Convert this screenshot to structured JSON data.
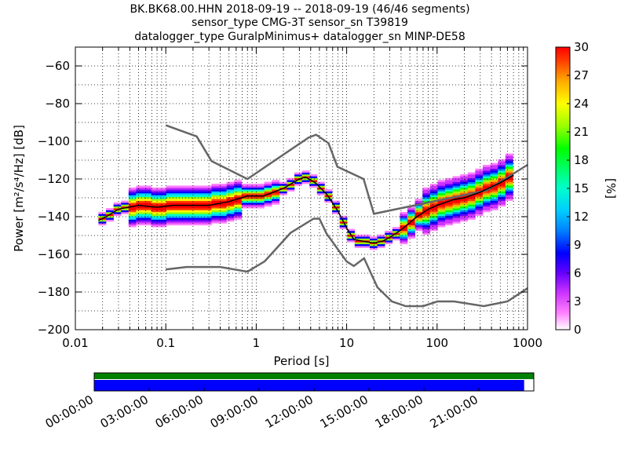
{
  "chart_data": {
    "type": "heatmap",
    "title_lines": [
      "BK.BK68.00.HHN   2018-09-19 -- 2018-09-19  (46/46 segments)",
      "sensor_type CMG-3T sensor_sn T39819",
      "datalogger_type GuralpMinimus+ datalogger_sn MINP-DE58"
    ],
    "xlabel": "Period [s]",
    "ylabel": "Power [m²/s⁴/Hz] [dB]",
    "x_scale": "log",
    "xlim": [
      0.01,
      1000
    ],
    "ylim": [
      -200,
      -50
    ],
    "x_ticks": [
      0.01,
      0.1,
      1,
      10,
      100,
      1000
    ],
    "x_tick_labels": [
      "0.01",
      "0.1",
      "1",
      "10",
      "100",
      "1000"
    ],
    "y_ticks": [
      -200,
      -180,
      -160,
      -140,
      -120,
      -100,
      -80,
      -60
    ],
    "y_tick_labels": [
      "−200",
      "−180",
      "−160",
      "−140",
      "−120",
      "−100",
      "−80",
      "−60"
    ],
    "grid": true,
    "colorbar": {
      "label": "[%]",
      "range": [
        0,
        30
      ],
      "ticks": [
        0,
        3,
        6,
        9,
        12,
        15,
        18,
        21,
        24,
        27,
        30
      ],
      "tick_labels": [
        "0",
        "3",
        "6",
        "9",
        "12",
        "15",
        "18",
        "21",
        "24",
        "27",
        "30"
      ]
    },
    "mode_curve": {
      "period": [
        0.018,
        0.022,
        0.03,
        0.05,
        0.08,
        0.12,
        0.2,
        0.3,
        0.5,
        0.8,
        1.2,
        2,
        3,
        3.5,
        4.5,
        6,
        8,
        10,
        12,
        15,
        20,
        25,
        30,
        40,
        60,
        80,
        100,
        150,
        200,
        300,
        500,
        700
      ],
      "power": [
        -142,
        -140,
        -136,
        -134,
        -135,
        -134,
        -134,
        -134,
        -132,
        -129,
        -129,
        -125,
        -120,
        -119,
        -122,
        -128,
        -137,
        -146,
        -152,
        -153,
        -154,
        -153,
        -151,
        -147,
        -140,
        -136,
        -134,
        -131,
        -130,
        -127,
        -122,
        -118
      ]
    },
    "high_noise_model": {
      "period": [
        0.1,
        0.22,
        0.32,
        0.8,
        3.8,
        4.6,
        6.3,
        7.9,
        15.4,
        20,
        354.8,
        1000
      ],
      "power": [
        -91.5,
        -97.4,
        -110.5,
        -120,
        -98,
        -96.5,
        -101,
        -113.5,
        -120,
        -138.5,
        -126,
        -112.5
      ]
    },
    "low_noise_model": {
      "period": [
        0.1,
        0.17,
        0.4,
        0.8,
        1.24,
        2.4,
        4.3,
        5,
        6,
        10,
        12,
        15.6,
        21.9,
        31.6,
        45,
        70,
        101,
        154,
        328,
        600,
        1000
      ],
      "power": [
        -168,
        -166.7,
        -166.7,
        -169.2,
        -163.7,
        -148.6,
        -141.1,
        -141.1,
        -149,
        -163.8,
        -166.2,
        -162.1,
        -177.5,
        -185,
        -187.5,
        -187.5,
        -185,
        -185,
        -187.5,
        -185,
        -178
      ]
    },
    "coverage": {
      "time_ticks": [
        "00:00:00",
        "03:00:00",
        "06:00:00",
        "09:00:00",
        "12:00:00",
        "15:00:00",
        "18:00:00",
        "21:00:00"
      ],
      "data_fraction": 0.978,
      "data_color": "#0000ff",
      "psd_color": "#008000"
    }
  }
}
